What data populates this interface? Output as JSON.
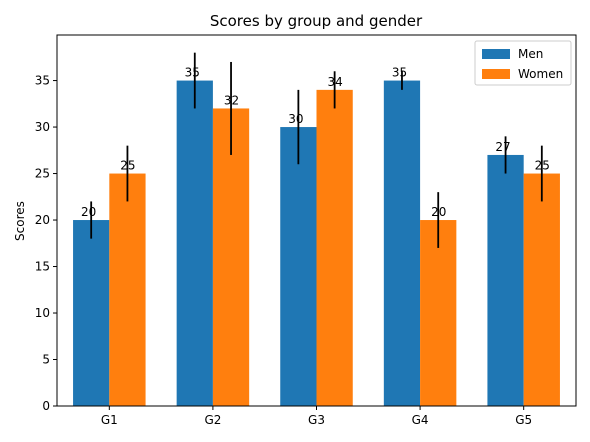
{
  "chart_data": {
    "type": "bar",
    "title": "Scores by group and gender",
    "xlabel": "",
    "ylabel": "Scores",
    "categories": [
      "G1",
      "G2",
      "G3",
      "G4",
      "G5"
    ],
    "ylim": [
      0,
      39.9
    ],
    "yticks": [
      0,
      5,
      10,
      15,
      20,
      25,
      30,
      35
    ],
    "grid": false,
    "legend_position": "top-right",
    "series": [
      {
        "name": "Men",
        "color": "#1f77b4",
        "values": [
          20,
          35,
          30,
          35,
          27
        ],
        "errors": [
          2,
          3,
          4,
          1,
          2
        ]
      },
      {
        "name": "Women",
        "color": "#ff7f0e",
        "values": [
          25,
          32,
          34,
          20,
          25
        ],
        "errors": [
          3,
          5,
          2,
          3,
          3
        ]
      }
    ]
  }
}
